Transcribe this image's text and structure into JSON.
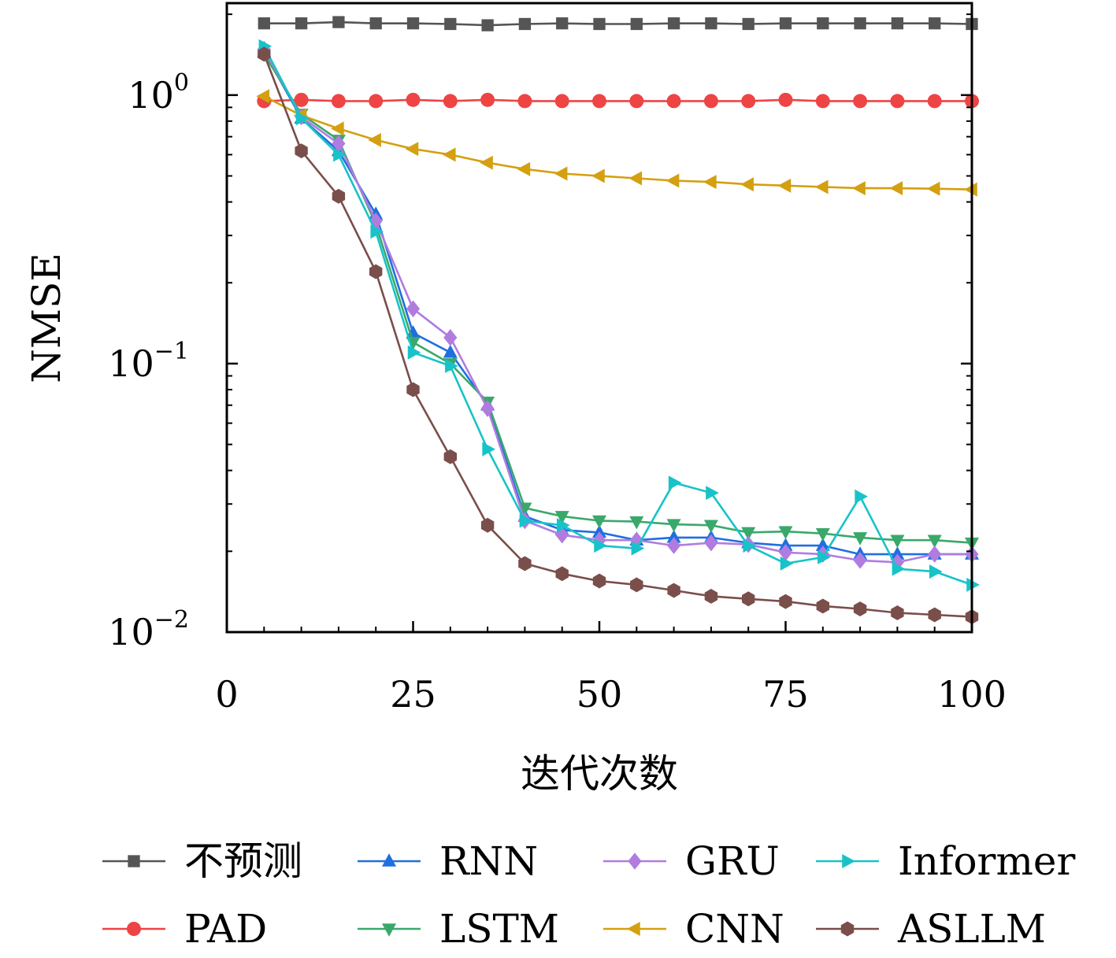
{
  "chart_data": {
    "type": "line",
    "xlabel": "迭代次数",
    "ylabel": "NMSE",
    "xlim": [
      0,
      100
    ],
    "ylim": [
      0.01,
      2.2
    ],
    "yscale": "log",
    "xticks": [
      "0",
      "25",
      "50",
      "75",
      "100"
    ],
    "xtick_values": [
      0,
      25,
      50,
      75,
      100
    ],
    "yticks": [
      {
        "value": 1,
        "base": "10",
        "exp": "0"
      },
      {
        "value": 0.1,
        "base": "10",
        "exp": "−1"
      },
      {
        "value": 0.01,
        "base": "10",
        "exp": "−2"
      }
    ],
    "grid": false,
    "legend_position": "bottom",
    "x": [
      5,
      10,
      15,
      20,
      25,
      30,
      35,
      40,
      45,
      50,
      55,
      60,
      65,
      70,
      75,
      80,
      85,
      90,
      95,
      100
    ],
    "series": [
      {
        "name": "不预测",
        "color": "#555555",
        "marker": "square",
        "values": [
          1.85,
          1.85,
          1.87,
          1.85,
          1.85,
          1.84,
          1.82,
          1.84,
          1.85,
          1.84,
          1.84,
          1.85,
          1.85,
          1.84,
          1.85,
          1.85,
          1.85,
          1.85,
          1.85,
          1.84
        ]
      },
      {
        "name": "PAD",
        "color": "#ee4444",
        "marker": "circle",
        "values": [
          0.95,
          0.96,
          0.95,
          0.95,
          0.96,
          0.95,
          0.96,
          0.95,
          0.95,
          0.95,
          0.95,
          0.95,
          0.95,
          0.95,
          0.96,
          0.95,
          0.95,
          0.95,
          0.95,
          0.95
        ]
      },
      {
        "name": "RNN",
        "color": "#1f6fe0",
        "marker": "triangle-up",
        "values": [
          1.45,
          0.82,
          0.62,
          0.36,
          0.13,
          0.11,
          0.07,
          0.027,
          0.024,
          0.0235,
          0.022,
          0.0225,
          0.0225,
          0.0215,
          0.021,
          0.021,
          0.0195,
          0.0195,
          0.0195,
          0.0195
        ]
      },
      {
        "name": "LSTM",
        "color": "#3aa86b",
        "marker": "triangle-down",
        "values": [
          1.42,
          0.85,
          0.68,
          0.33,
          0.12,
          0.1,
          0.072,
          0.029,
          0.027,
          0.026,
          0.0258,
          0.0252,
          0.025,
          0.0235,
          0.0237,
          0.0233,
          0.0225,
          0.022,
          0.022,
          0.0215
        ]
      },
      {
        "name": "GRU",
        "color": "#b07ce0",
        "marker": "diamond",
        "values": [
          1.48,
          0.83,
          0.66,
          0.34,
          0.16,
          0.125,
          0.068,
          0.026,
          0.023,
          0.022,
          0.022,
          0.021,
          0.0215,
          0.0212,
          0.0198,
          0.0195,
          0.0185,
          0.0182,
          0.0195,
          0.0195
        ]
      },
      {
        "name": "CNN",
        "color": "#d4a010",
        "marker": "triangle-left",
        "values": [
          0.99,
          0.84,
          0.75,
          0.68,
          0.63,
          0.6,
          0.56,
          0.53,
          0.51,
          0.5,
          0.49,
          0.48,
          0.475,
          0.465,
          0.46,
          0.455,
          0.45,
          0.45,
          0.448,
          0.445
        ]
      },
      {
        "name": "Informer",
        "color": "#17c3c8",
        "marker": "triangle-right",
        "values": [
          1.52,
          0.82,
          0.6,
          0.31,
          0.11,
          0.098,
          0.048,
          0.026,
          0.025,
          0.021,
          0.0205,
          0.036,
          0.033,
          0.021,
          0.018,
          0.019,
          0.032,
          0.0172,
          0.0168,
          0.015
        ]
      },
      {
        "name": "ASLLM",
        "color": "#7a4e4a",
        "marker": "hexagon",
        "values": [
          1.42,
          0.62,
          0.42,
          0.22,
          0.08,
          0.045,
          0.025,
          0.018,
          0.0165,
          0.0155,
          0.015,
          0.0143,
          0.0136,
          0.0133,
          0.013,
          0.0125,
          0.0122,
          0.0118,
          0.0116,
          0.0114
        ]
      }
    ]
  }
}
